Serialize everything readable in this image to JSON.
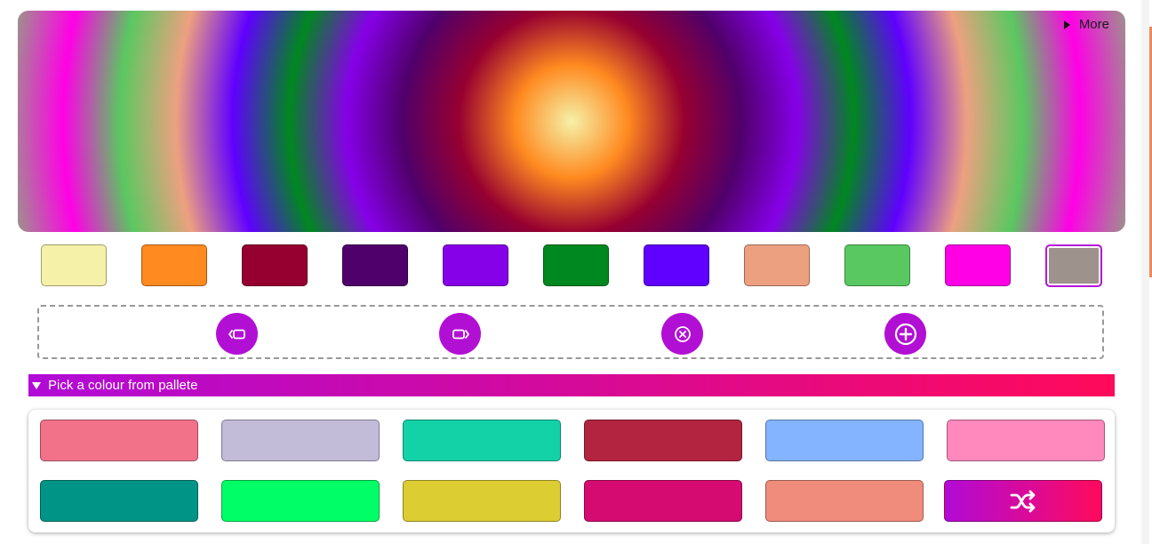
{
  "more": {
    "label": "More"
  },
  "gradient_stops": [
    "#f5f1a8",
    "#ff8a20",
    "#960030",
    "#50006a",
    "#8600e8",
    "#008820",
    "#6000ff",
    "#eda080",
    "#5ac860",
    "#ff00e6",
    "#9e928c"
  ],
  "swatches": [
    {
      "color": "#f5f1a8"
    },
    {
      "color": "#ff8a20"
    },
    {
      "color": "#960030"
    },
    {
      "color": "#50006a"
    },
    {
      "color": "#8600e8"
    },
    {
      "color": "#008820"
    },
    {
      "color": "#6000ff"
    },
    {
      "color": "#eda080"
    },
    {
      "color": "#5ac860"
    },
    {
      "color": "#ff00e6"
    },
    {
      "color": "#9e928c",
      "selected": true
    }
  ],
  "toolbar": {
    "buttons": [
      {
        "name": "move-left-button",
        "icon": "move-left-icon"
      },
      {
        "name": "move-right-button",
        "icon": "move-right-icon"
      },
      {
        "name": "remove-color-button",
        "icon": "close-circle-icon"
      },
      {
        "name": "add-color-button",
        "icon": "plus-circle-icon"
      }
    ],
    "accent": "#b20fd4"
  },
  "palette": {
    "title": "Pick a colour from pallete",
    "colors": [
      "#f2728a",
      "#c2bcd9",
      "#14d2a8",
      "#b32440",
      "#84b4ff",
      "#ff88bc",
      "#009486",
      "#00ff66",
      "#dccd33",
      "#d50b72",
      "#f08c7c"
    ],
    "shuffle_icon": "shuffle-icon"
  }
}
